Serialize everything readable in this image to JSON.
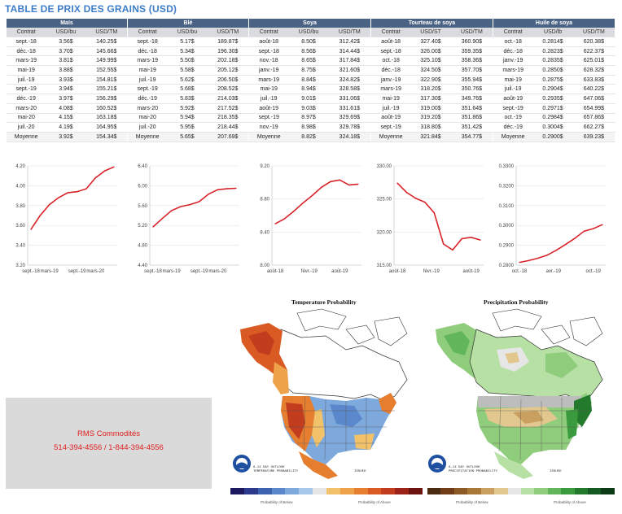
{
  "title": "TABLE DE PRIX DES GRAINS (USD)",
  "tables": [
    {
      "name": "Maïs",
      "cols": [
        "Contrat",
        "USD/bu",
        "USD/TM"
      ],
      "rows": [
        [
          "sept.-18",
          "3.56$",
          "140.25$"
        ],
        [
          "déc.-18",
          "3.70$",
          "145.66$"
        ],
        [
          "mars-19",
          "3.81$",
          "149.99$"
        ],
        [
          "mai-19",
          "3.88$",
          "152.55$"
        ],
        [
          "juil.-19",
          "3.93$",
          "154.81$"
        ],
        [
          "sept.-19",
          "3.94$",
          "155.21$"
        ],
        [
          "déc.-19",
          "3.97$",
          "156.29$"
        ],
        [
          "mars-20",
          "4.08$",
          "160.52$"
        ],
        [
          "mai-20",
          "4.15$",
          "163.18$"
        ],
        [
          "juil.-20",
          "4.19$",
          "164.95$"
        ],
        [
          "Moyenne",
          "3.92$",
          "154.34$"
        ]
      ]
    },
    {
      "name": "Blé",
      "cols": [
        "Contrat",
        "USD/bu",
        "USD/TM"
      ],
      "rows": [
        [
          "sept.-18",
          "5.17$",
          "189.87$"
        ],
        [
          "déc.-18",
          "5.34$",
          "196.30$"
        ],
        [
          "mars-19",
          "5.50$",
          "202.18$"
        ],
        [
          "mai-19",
          "5.58$",
          "205.12$"
        ],
        [
          "juil.-19",
          "5.62$",
          "206.50$"
        ],
        [
          "sept.-19",
          "5.68$",
          "208.52$"
        ],
        [
          "déc.-19",
          "5.83$",
          "214.03$"
        ],
        [
          "mars-20",
          "5.92$",
          "217.52$"
        ],
        [
          "mai-20",
          "5.94$",
          "218.35$"
        ],
        [
          "juil.-20",
          "5.95$",
          "218.44$"
        ],
        [
          "Moyenne",
          "5.65$",
          "207.69$"
        ]
      ]
    },
    {
      "name": "Soya",
      "cols": [
        "Contrat",
        "USD/bu",
        "USD/TM"
      ],
      "rows": [
        [
          "août-18",
          "8.50$",
          "312.42$"
        ],
        [
          "sept.-18",
          "8.56$",
          "314.44$"
        ],
        [
          "nov.-18",
          "8.65$",
          "317.84$"
        ],
        [
          "janv.-19",
          "8.75$",
          "321.60$"
        ],
        [
          "mars-19",
          "8.84$",
          "324.82$"
        ],
        [
          "mai-19",
          "8.94$",
          "328.58$"
        ],
        [
          "juil.-19",
          "9.01$",
          "331.06$"
        ],
        [
          "août-19",
          "9.03$",
          "331.61$"
        ],
        [
          "sept.-19",
          "8.97$",
          "329.69$"
        ],
        [
          "nov.-19",
          "8.98$",
          "329.78$"
        ],
        [
          "Moyenne",
          "8.82$",
          "324.18$"
        ]
      ]
    },
    {
      "name": "Tourteau de soya",
      "cols": [
        "Contrat",
        "USD/ST",
        "USD/TM"
      ],
      "rows": [
        [
          "août-18",
          "327.40$",
          "360.90$"
        ],
        [
          "sept.-18",
          "326.00$",
          "359.35$"
        ],
        [
          "oct.-18",
          "325.10$",
          "358.36$"
        ],
        [
          "déc.-18",
          "324.50$",
          "357.70$"
        ],
        [
          "janv.-19",
          "322.90$",
          "355.94$"
        ],
        [
          "mars-19",
          "318.20$",
          "350.76$"
        ],
        [
          "mai-19",
          "317.30$",
          "349.76$"
        ],
        [
          "juil.-19",
          "319.00$",
          "351.64$"
        ],
        [
          "août-19",
          "319.20$",
          "351.86$"
        ],
        [
          "sept.-19",
          "318.80$",
          "351.42$"
        ],
        [
          "Moyenne",
          "321.84$",
          "354.77$"
        ]
      ]
    },
    {
      "name": "Huile de soya",
      "cols": [
        "Contrat",
        "USD/lb",
        "USD/TM"
      ],
      "rows": [
        [
          "oct.-18",
          "0.2814$",
          "620.38$"
        ],
        [
          "déc.-18",
          "0.2823$",
          "622.37$"
        ],
        [
          "janv.-19",
          "0.2835$",
          "625.01$"
        ],
        [
          "mars-19",
          "0.2850$",
          "628.32$"
        ],
        [
          "mai-19",
          "0.2875$",
          "633.83$"
        ],
        [
          "juil.-19",
          "0.2904$",
          "640.22$"
        ],
        [
          "août-19",
          "0.2935$",
          "647.06$"
        ],
        [
          "sept.-19",
          "0.2971$",
          "654.99$"
        ],
        [
          "oct.-19",
          "0.2984$",
          "657.86$"
        ],
        [
          "déc.-19",
          "0.3004$",
          "662.27$"
        ],
        [
          "Moyenne",
          "0.2900$",
          "639.23$"
        ]
      ]
    }
  ],
  "chart_data": [
    {
      "type": "line",
      "ylim": [
        3.2,
        4.2
      ],
      "yticks": [
        "3.20",
        "3.40",
        "3.60",
        "3.80",
        "4.00",
        "4.20"
      ],
      "x": [
        "sept.-18",
        "déc.-18",
        "mars-19",
        "mai-19",
        "juil.-19",
        "sept.-19",
        "déc.-19",
        "mars-20",
        "mai-20",
        "juil.-20"
      ],
      "values": [
        3.56,
        3.7,
        3.81,
        3.88,
        3.93,
        3.94,
        3.97,
        4.08,
        4.15,
        4.19
      ],
      "xticks": [
        "sept.-18",
        "mars-19",
        "sept.-19",
        "mars-20"
      ]
    },
    {
      "type": "line",
      "ylim": [
        4.4,
        6.4
      ],
      "yticks": [
        "4.40",
        "4.80",
        "5.20",
        "5.60",
        "6.00",
        "6.40"
      ],
      "x": [
        "sept.-18",
        "déc.-18",
        "mars-19",
        "mai-19",
        "juil.-19",
        "sept.-19",
        "déc.-19",
        "mars-20",
        "mai-20",
        "juil.-20"
      ],
      "values": [
        5.17,
        5.34,
        5.5,
        5.58,
        5.62,
        5.68,
        5.83,
        5.92,
        5.94,
        5.95
      ],
      "xticks": [
        "sept.-18",
        "mars-19",
        "sept.-19",
        "mars-20"
      ]
    },
    {
      "type": "line",
      "ylim": [
        8.0,
        9.2
      ],
      "yticks": [
        "8.00",
        "8.40",
        "8.80",
        "9.20"
      ],
      "x": [
        "août-18",
        "sept.-18",
        "nov.-18",
        "janv.-19",
        "mars-19",
        "mai-19",
        "juil.-19",
        "août-19",
        "sept.-19",
        "nov.-19"
      ],
      "values": [
        8.5,
        8.56,
        8.65,
        8.75,
        8.84,
        8.94,
        9.01,
        9.03,
        8.97,
        8.98
      ],
      "xticks": [
        "août-18",
        "févr.-19",
        "août-19"
      ]
    },
    {
      "type": "line",
      "ylim": [
        315.0,
        330.0
      ],
      "yticks": [
        "315.00",
        "320.00",
        "325.00",
        "330.00"
      ],
      "x": [
        "août-18",
        "sept.-18",
        "oct.-18",
        "déc.-18",
        "janv.-19",
        "mars-19",
        "mai-19",
        "juil.-19",
        "août-19",
        "sept.-19"
      ],
      "values": [
        327.4,
        326.0,
        325.1,
        324.5,
        322.9,
        318.2,
        317.3,
        319.0,
        319.2,
        318.8
      ],
      "xticks": [
        "août-18",
        "févr.-19",
        "août-19"
      ]
    },
    {
      "type": "line",
      "ylim": [
        0.28,
        0.33
      ],
      "yticks": [
        "0.2800",
        "0.2900",
        "0.3000",
        "0.3100",
        "0.3200",
        "0.3300"
      ],
      "x": [
        "oct.-18",
        "déc.-18",
        "janv.-19",
        "mars-19",
        "mai-19",
        "juil.-19",
        "août-19",
        "sept.-19",
        "oct.-19",
        "déc.-19"
      ],
      "values": [
        0.2814,
        0.2823,
        0.2835,
        0.285,
        0.2875,
        0.2904,
        0.2935,
        0.2971,
        0.2984,
        0.3004
      ],
      "xticks": [
        "oct.-18",
        "avr.-19",
        "oct.-19"
      ]
    }
  ],
  "maps": {
    "temperature_title": "Temperature Probability",
    "precipitation_title": "Precipitation Probability",
    "below_label": "Probability of Below",
    "above_label": "Probability of Above",
    "temp_colors": [
      "#1c1a5e",
      "#2c3b8c",
      "#3e63b0",
      "#5b88cc",
      "#7da9dd",
      "#a8c8ea",
      "#e6e6e6",
      "#f2c26b",
      "#eea24a",
      "#e67e30",
      "#d95b23",
      "#c23c1e",
      "#9c2318",
      "#6e1410"
    ],
    "precip_colors": [
      "#4a2a10",
      "#6e3c16",
      "#8c5a24",
      "#a87838",
      "#c9a060",
      "#e2c88e",
      "#e6e6e6",
      "#b6e0a4",
      "#8fcc7c",
      "#62b65a",
      "#3a9a3e",
      "#247a2c",
      "#155a20",
      "#0c3c16"
    ]
  },
  "contact": {
    "company": "RMS Commodités",
    "phones": "514-394-4556 / 1-844-394-4556"
  }
}
